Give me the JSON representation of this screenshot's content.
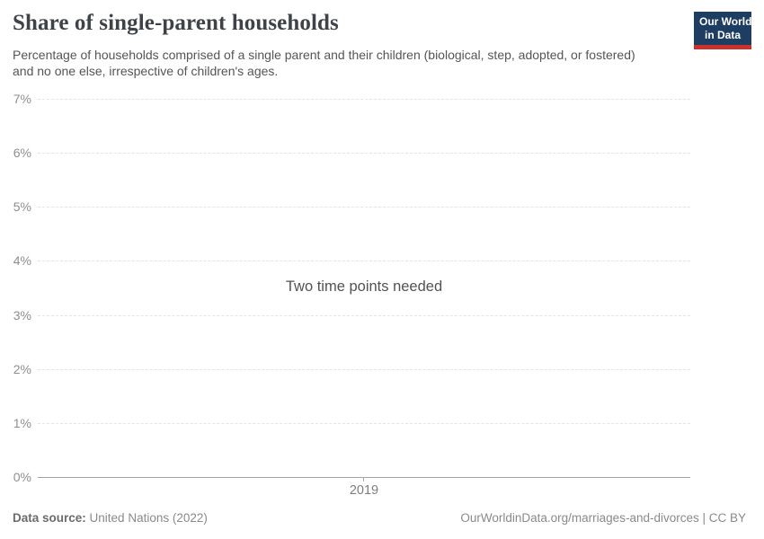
{
  "header": {
    "title": "Share of single-parent households",
    "subtitle": "Percentage of households comprised of a single parent and their children (biological, step, adopted, or fostered) and no one else, irrespective of children's ages.",
    "logo": {
      "name": "our-world-in-data-logo",
      "line1": "Our World",
      "line2": "in Data",
      "bg_color": "#1d3d63",
      "stripe_color": "#cc312b"
    }
  },
  "chart_data": {
    "type": "line",
    "title": "Share of single-parent households",
    "series": [],
    "values": [],
    "message": "Two time points needed",
    "x_ticks": [
      "2019"
    ],
    "y_ticks": [
      "7%",
      "6%",
      "5%",
      "4%",
      "3%",
      "2%",
      "1%",
      "0%"
    ],
    "ylim": [
      0,
      7
    ],
    "y_unit": "%",
    "xlabel": "",
    "ylabel": "",
    "grid": "horizontal-dashed",
    "legend": "none"
  },
  "footer": {
    "datasource_label": "Data source:",
    "datasource_value": "United Nations (2022)",
    "credit": "OurWorldinData.org/marriages-and-divorces | CC BY"
  },
  "colors": {
    "background": "#ffffff",
    "title_text": "#3d4348",
    "subtitle_text": "#555555",
    "axis_label_text": "#8e8e8e",
    "gridline_dashed": "#e4e4e4",
    "axis_line": "#a3a3a3",
    "message_text": "#525252",
    "footer_text": "#8a8a8a",
    "logo_navy": "#1d3d63",
    "logo_red": "#cc312b"
  }
}
